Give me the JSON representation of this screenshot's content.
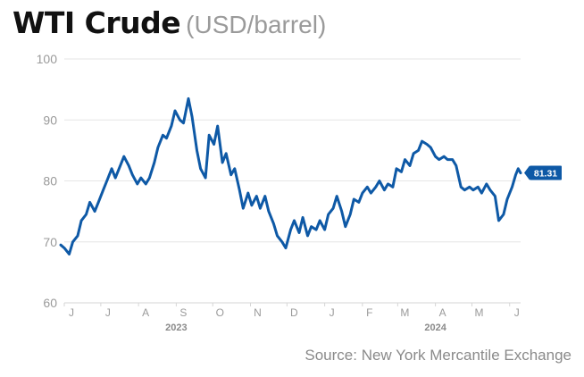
{
  "title": "WTI Crude",
  "subtitle": "(USD/barrel)",
  "source": "Source: New York Mercantile Exchange",
  "colors": {
    "line": "#0e59a6",
    "grid": "#e6e6e6",
    "tick_text": "#9a9a9a",
    "badge": "#0e59a6",
    "badge_text": "#ffffff"
  },
  "chart_data": {
    "type": "line",
    "title": "WTI Crude",
    "subtitle": "(USD/barrel)",
    "xlabel": "",
    "ylabel": "",
    "ylim": [
      60,
      100
    ],
    "yticks": [
      60,
      70,
      80,
      90,
      100
    ],
    "xlim": [
      "2023-06-01",
      "2024-06-10"
    ],
    "grid": true,
    "month_ticks": [
      {
        "date": "2023-06-01",
        "label": "J"
      },
      {
        "date": "2023-07-01",
        "label": "J"
      },
      {
        "date": "2023-08-01",
        "label": "A"
      },
      {
        "date": "2023-09-01",
        "label": "S"
      },
      {
        "date": "2023-10-01",
        "label": "O"
      },
      {
        "date": "2023-11-01",
        "label": "N"
      },
      {
        "date": "2023-12-01",
        "label": "D"
      },
      {
        "date": "2024-01-01",
        "label": "J"
      },
      {
        "date": "2024-02-01",
        "label": "F"
      },
      {
        "date": "2024-03-01",
        "label": "M"
      },
      {
        "date": "2024-04-01",
        "label": "A"
      },
      {
        "date": "2024-05-01",
        "label": "M"
      },
      {
        "date": "2024-06-01",
        "label": "J"
      }
    ],
    "year_labels": [
      {
        "date": "2023-09-01",
        "label": "2023"
      },
      {
        "date": "2024-04-01",
        "label": "2024"
      }
    ],
    "last_value_label": "81.31",
    "series": [
      {
        "values": [
          [
            "2023-05-26",
            69.5
          ],
          [
            "2023-06-01",
            69.0
          ],
          [
            "2023-06-05",
            68.0
          ],
          [
            "2023-06-08",
            70.0
          ],
          [
            "2023-06-12",
            71.0
          ],
          [
            "2023-06-15",
            73.5
          ],
          [
            "2023-06-19",
            74.5
          ],
          [
            "2023-06-22",
            76.5
          ],
          [
            "2023-06-26",
            75.0
          ],
          [
            "2023-06-29",
            76.5
          ],
          [
            "2023-07-03",
            78.5
          ],
          [
            "2023-07-06",
            80.0
          ],
          [
            "2023-07-10",
            82.0
          ],
          [
            "2023-07-13",
            80.5
          ],
          [
            "2023-07-17",
            82.5
          ],
          [
            "2023-07-20",
            84.0
          ],
          [
            "2023-07-24",
            82.5
          ],
          [
            "2023-07-27",
            81.0
          ],
          [
            "2023-07-31",
            79.5
          ],
          [
            "2023-08-03",
            80.5
          ],
          [
            "2023-08-07",
            79.5
          ],
          [
            "2023-08-10",
            80.5
          ],
          [
            "2023-08-14",
            83.0
          ],
          [
            "2023-08-17",
            85.5
          ],
          [
            "2023-08-21",
            87.5
          ],
          [
            "2023-08-24",
            87.0
          ],
          [
            "2023-08-28",
            89.0
          ],
          [
            "2023-08-31",
            91.5
          ],
          [
            "2023-09-04",
            90.0
          ],
          [
            "2023-09-07",
            89.5
          ],
          [
            "2023-09-11",
            93.5
          ],
          [
            "2023-09-14",
            90.5
          ],
          [
            "2023-09-18",
            85.0
          ],
          [
            "2023-09-21",
            82.0
          ],
          [
            "2023-09-25",
            80.5
          ],
          [
            "2023-09-28",
            87.5
          ],
          [
            "2023-10-02",
            86.0
          ],
          [
            "2023-10-05",
            89.0
          ],
          [
            "2023-10-09",
            83.0
          ],
          [
            "2023-10-12",
            84.5
          ],
          [
            "2023-10-16",
            81.0
          ],
          [
            "2023-10-19",
            82.0
          ],
          [
            "2023-10-23",
            78.5
          ],
          [
            "2023-10-26",
            75.5
          ],
          [
            "2023-10-30",
            78.0
          ],
          [
            "2023-11-02",
            76.0
          ],
          [
            "2023-11-06",
            77.5
          ],
          [
            "2023-11-09",
            75.5
          ],
          [
            "2023-11-13",
            77.5
          ],
          [
            "2023-11-16",
            75.0
          ],
          [
            "2023-11-20",
            73.0
          ],
          [
            "2023-11-23",
            71.0
          ],
          [
            "2023-11-27",
            70.0
          ],
          [
            "2023-11-30",
            69.0
          ],
          [
            "2023-12-04",
            72.0
          ],
          [
            "2023-12-07",
            73.5
          ],
          [
            "2023-12-11",
            71.5
          ],
          [
            "2023-12-14",
            74.0
          ],
          [
            "2023-12-18",
            71.0
          ],
          [
            "2023-12-21",
            72.5
          ],
          [
            "2023-12-25",
            72.0
          ],
          [
            "2023-12-28",
            73.5
          ],
          [
            "2024-01-01",
            72.0
          ],
          [
            "2024-01-04",
            74.5
          ],
          [
            "2024-01-08",
            75.5
          ],
          [
            "2024-01-11",
            77.5
          ],
          [
            "2024-01-15",
            75.0
          ],
          [
            "2024-01-18",
            72.5
          ],
          [
            "2024-01-22",
            74.5
          ],
          [
            "2024-01-25",
            77.0
          ],
          [
            "2024-01-29",
            76.5
          ],
          [
            "2024-02-01",
            78.0
          ],
          [
            "2024-02-05",
            79.0
          ],
          [
            "2024-02-08",
            78.0
          ],
          [
            "2024-02-12",
            79.0
          ],
          [
            "2024-02-15",
            80.0
          ],
          [
            "2024-02-19",
            78.5
          ],
          [
            "2024-02-22",
            79.5
          ],
          [
            "2024-02-26",
            79.0
          ],
          [
            "2024-02-29",
            82.0
          ],
          [
            "2024-03-04",
            81.5
          ],
          [
            "2024-03-07",
            83.5
          ],
          [
            "2024-03-11",
            82.5
          ],
          [
            "2024-03-14",
            84.5
          ],
          [
            "2024-03-18",
            85.0
          ],
          [
            "2024-03-21",
            86.5
          ],
          [
            "2024-03-25",
            86.0
          ],
          [
            "2024-03-28",
            85.5
          ],
          [
            "2024-04-01",
            84.0
          ],
          [
            "2024-04-04",
            83.5
          ],
          [
            "2024-04-08",
            84.0
          ],
          [
            "2024-04-11",
            83.5
          ],
          [
            "2024-04-15",
            83.5
          ],
          [
            "2024-04-18",
            82.5
          ],
          [
            "2024-04-22",
            79.0
          ],
          [
            "2024-04-25",
            78.5
          ],
          [
            "2024-04-29",
            79.0
          ],
          [
            "2024-05-02",
            78.5
          ],
          [
            "2024-05-06",
            79.0
          ],
          [
            "2024-05-09",
            78.0
          ],
          [
            "2024-05-13",
            79.5
          ],
          [
            "2024-05-16",
            78.5
          ],
          [
            "2024-05-20",
            77.5
          ],
          [
            "2024-05-23",
            73.5
          ],
          [
            "2024-05-27",
            74.5
          ],
          [
            "2024-05-30",
            77.0
          ],
          [
            "2024-06-03",
            79.0
          ],
          [
            "2024-06-06",
            81.0
          ],
          [
            "2024-06-08",
            82.0
          ],
          [
            "2024-06-10",
            81.31
          ]
        ]
      }
    ]
  }
}
